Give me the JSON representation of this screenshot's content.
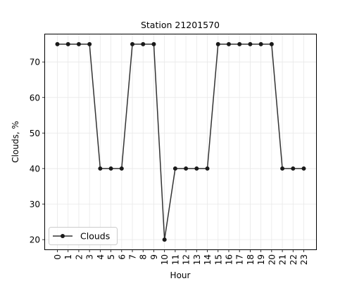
{
  "chart_data": {
    "type": "line",
    "title": "Station 21201570",
    "xlabel": "Hour",
    "ylabel": "Clouds, %",
    "x": [
      0,
      1,
      2,
      3,
      4,
      5,
      6,
      7,
      8,
      9,
      10,
      11,
      12,
      13,
      14,
      15,
      16,
      17,
      18,
      19,
      20,
      21,
      22,
      23
    ],
    "x_tick_labels": [
      "0",
      "1",
      "2",
      "3",
      "4",
      "5",
      "6",
      "7",
      "8",
      "9",
      "10",
      "11",
      "12",
      "13",
      "14",
      "15",
      "16",
      "17",
      "18",
      "19",
      "20",
      "21",
      "22",
      "23"
    ],
    "series": [
      {
        "name": "Clouds",
        "values": [
          75,
          75,
          75,
          75,
          40,
          40,
          40,
          75,
          75,
          75,
          20,
          40,
          40,
          40,
          40,
          75,
          75,
          75,
          75,
          75,
          75,
          40,
          40,
          40
        ],
        "color": "#333333",
        "marker_color": "#1a1a1a"
      }
    ],
    "y_ticks": [
      20,
      30,
      40,
      50,
      60,
      70
    ],
    "y_tick_labels": [
      "20",
      "30",
      "40",
      "50",
      "60",
      "70"
    ],
    "xlim": [
      -1.15,
      24.15
    ],
    "ylim": [
      17.25,
      77.75
    ],
    "grid": true,
    "legend_position": "lower-left"
  }
}
